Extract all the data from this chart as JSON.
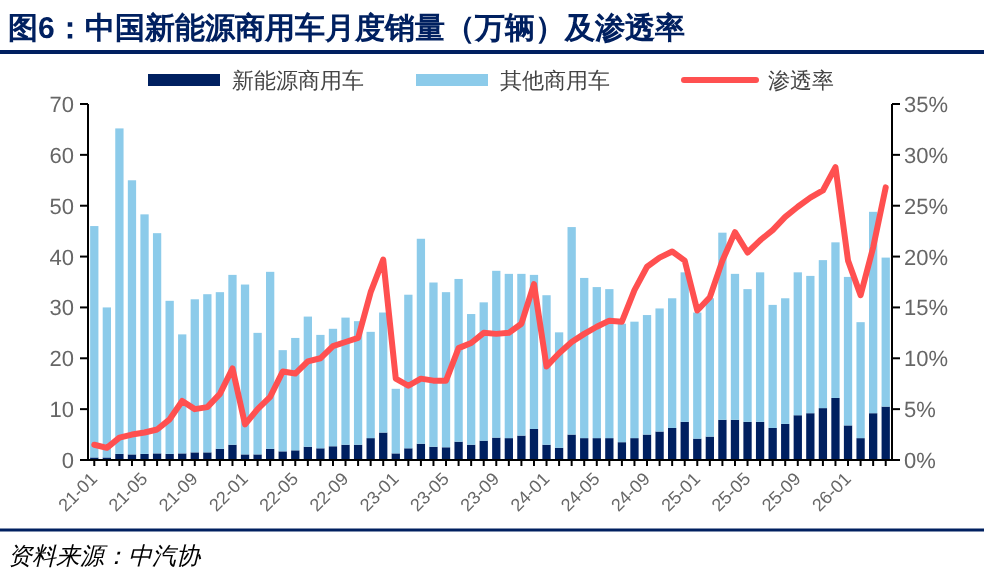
{
  "chart_data": {
    "type": "bar",
    "stacked": true,
    "title": "图6：中国新能源商用车月度销量（万辆）及渗透率",
    "categories": [
      "21-01",
      null,
      null,
      null,
      "21-05",
      null,
      null,
      null,
      "21-09",
      null,
      null,
      null,
      "22-01",
      null,
      null,
      null,
      "22-05",
      null,
      null,
      null,
      "22-09",
      null,
      null,
      null,
      "23-01",
      null,
      null,
      null,
      "23-05",
      null,
      null,
      null,
      "23-09",
      null,
      null,
      null,
      "24-01",
      null,
      null,
      null,
      "24-05",
      null,
      null,
      null,
      "24-09",
      null,
      null,
      null,
      "25-01",
      null,
      null,
      null,
      "25-05",
      null,
      null,
      null,
      "25-09",
      null,
      null,
      null,
      "26-01",
      null,
      null,
      null
    ],
    "series": [
      {
        "name": "新能源商用车",
        "color": "#002060",
        "values": [
          0.5,
          0.5,
          1.2,
          1.1,
          1.2,
          1.3,
          1.2,
          1.3,
          1.5,
          1.5,
          2.2,
          3.0,
          1.1,
          1.1,
          2.2,
          1.7,
          1.9,
          2.6,
          2.3,
          2.7,
          3.0,
          3.0,
          4.3,
          5.4,
          1.3,
          2.3,
          3.2,
          2.6,
          2.5,
          3.6,
          3.0,
          3.8,
          4.4,
          4.3,
          4.8,
          6.1,
          3.0,
          2.4,
          5.0,
          4.3,
          4.3,
          4.3,
          3.5,
          4.3,
          5.0,
          5.6,
          6.3,
          7.5,
          4.2,
          4.6,
          7.9,
          7.9,
          7.5,
          7.5,
          6.3,
          7.1,
          8.8,
          9.2,
          10.2,
          12.2,
          6.8,
          4.3,
          9.2,
          10.5
        ]
      },
      {
        "name": "其他商用车",
        "color": "#8ccbea",
        "values": [
          45.5,
          29.5,
          64.0,
          53.9,
          47.1,
          43.3,
          30.1,
          23.4,
          30.1,
          31.1,
          30.8,
          33.4,
          33.4,
          23.9,
          34.8,
          19.9,
          22.1,
          25.6,
          22.3,
          23.1,
          25.0,
          24.3,
          20.9,
          23.6,
          12.7,
          30.2,
          40.3,
          32.3,
          30.5,
          32.0,
          25.7,
          27.2,
          32.8,
          32.3,
          31.8,
          30.3,
          29.4,
          22.7,
          40.8,
          31.5,
          29.7,
          29.3,
          23.3,
          22.9,
          23.5,
          24.2,
          25.5,
          29.4,
          24.8,
          27.2,
          36.8,
          28.7,
          26.1,
          29.4,
          24.2,
          24.7,
          28.1,
          27.0,
          29.1,
          30.6,
          29.2,
          22.8,
          39.6,
          29.3
        ]
      },
      {
        "name": "渗透率",
        "type": "line",
        "axis": "y2",
        "color": "#ff5050",
        "values": [
          1.5,
          1.2,
          2.2,
          2.5,
          2.7,
          3.0,
          4.0,
          5.8,
          5.0,
          5.2,
          6.5,
          9.0,
          3.5,
          5.0,
          6.2,
          8.7,
          8.5,
          9.7,
          10.0,
          11.2,
          11.6,
          12.0,
          16.5,
          19.7,
          8.0,
          7.3,
          8.0,
          7.8,
          7.8,
          11.0,
          11.5,
          12.5,
          12.4,
          12.5,
          13.4,
          17.3,
          9.2,
          10.5,
          11.6,
          12.4,
          13.1,
          13.7,
          13.6,
          16.7,
          19.0,
          19.9,
          20.5,
          19.6,
          14.7,
          16.0,
          19.6,
          22.4,
          20.4,
          21.6,
          22.6,
          23.9,
          24.9,
          25.8,
          26.5,
          28.8,
          19.6,
          16.2,
          20.9,
          26.8
        ]
      }
    ],
    "ylim": [
      0,
      70
    ],
    "yticks": [
      0,
      10,
      20,
      30,
      40,
      50,
      60,
      70
    ],
    "y2lim": [
      0,
      35
    ],
    "y2ticks": [
      {
        "value": 0,
        "label": "0%"
      },
      {
        "value": 5,
        "label": "5%"
      },
      {
        "value": 10,
        "label": "10%"
      },
      {
        "value": 15,
        "label": "15%"
      },
      {
        "value": 20,
        "label": "20%"
      },
      {
        "value": 25,
        "label": "25%"
      },
      {
        "value": 30,
        "label": "30%"
      },
      {
        "value": 35,
        "label": "35%"
      }
    ],
    "legend": "top",
    "grid": false,
    "annotations": [
      "资料来源：中汽协"
    ]
  }
}
